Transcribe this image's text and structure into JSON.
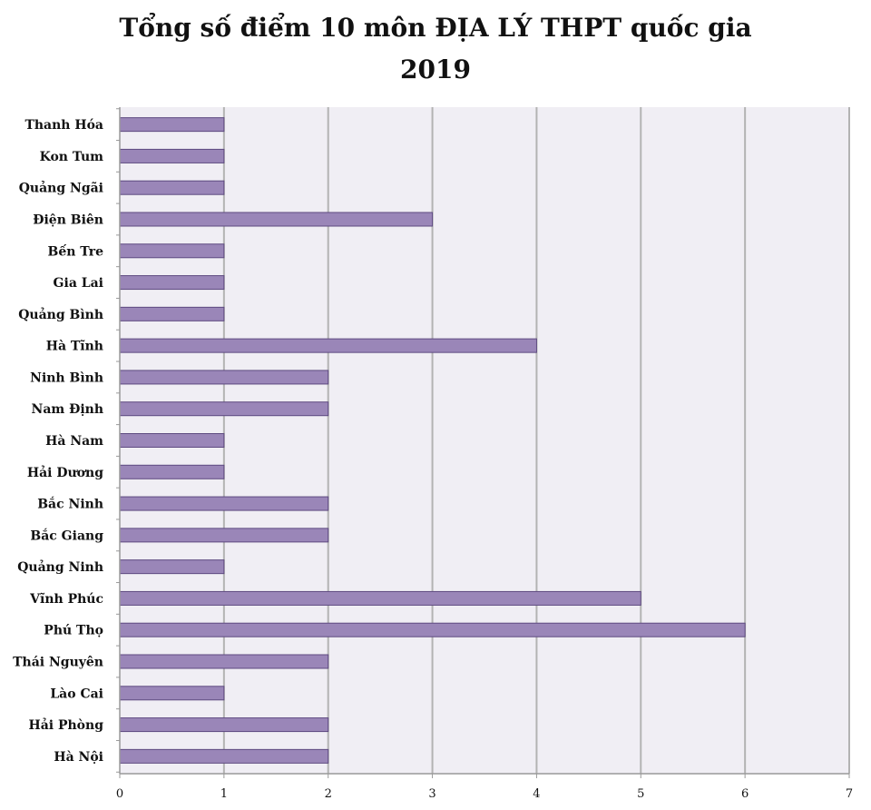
{
  "chart_data": {
    "type": "bar",
    "orientation": "horizontal",
    "title_line1": "Tổng số điểm 10 môn ĐỊA LÝ THPT quốc gia",
    "title_line2": "2019",
    "xlabel": "",
    "ylabel": "",
    "xlim": [
      0,
      7
    ],
    "x_ticks": [
      "0",
      "1",
      "2",
      "3",
      "4",
      "5",
      "6",
      "7"
    ],
    "grid": "vertical",
    "legend": "none",
    "categories": [
      "Thanh Hóa",
      "Kon Tum",
      "Quảng Ngãi",
      "Điện Biên",
      "Bến Tre",
      "Gia Lai",
      "Quảng Bình",
      "Hà Tĩnh",
      "Ninh Bình",
      "Nam Định",
      "Hà Nam",
      "Hải Dương",
      "Bắc Ninh",
      "Bắc Giang",
      "Quảng Ninh",
      "Vĩnh Phúc",
      "Phú Thọ",
      "Thái Nguyên",
      "Lào Cai",
      "Hải Phòng",
      "Hà Nội"
    ],
    "values": [
      1,
      1,
      1,
      3,
      1,
      1,
      1,
      4,
      2,
      2,
      1,
      1,
      2,
      2,
      1,
      5,
      6,
      2,
      1,
      2,
      2
    ],
    "colors": {
      "bar_fill": "#9a86b8",
      "bar_stroke": "#5e4a80",
      "plot_bg": "#f0eef4",
      "grid": "#b3b3b3"
    }
  }
}
